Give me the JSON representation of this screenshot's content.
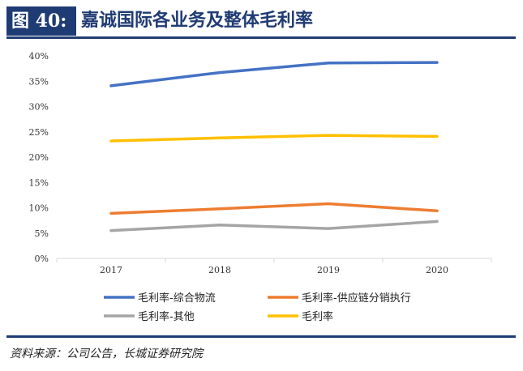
{
  "header": {
    "figure_number": "图 40:",
    "title": "嘉诚国际各业务及整体毛利率"
  },
  "source": "资料来源：公司公告，长城证券研究院",
  "colors": {
    "brand": "#1f3b73",
    "gridline": "#d9d9d9"
  },
  "chart_data": {
    "type": "line",
    "x": [
      "2017",
      "2018",
      "2019",
      "2020"
    ],
    "yticks": [
      "0%",
      "5%",
      "10%",
      "15%",
      "20%",
      "25%",
      "30%",
      "35%",
      "40%"
    ],
    "ylim": [
      0,
      40
    ],
    "y_unit": "%",
    "grid": false,
    "legend_position": "bottom",
    "series": [
      {
        "name": "毛利率-综合物流",
        "color": "#4472c4",
        "values": [
          34.1,
          36.7,
          38.6,
          38.7
        ]
      },
      {
        "name": "毛利率-供应链分销执行",
        "color": "#ed7d31",
        "values": [
          8.9,
          9.8,
          10.8,
          9.4
        ]
      },
      {
        "name": "毛利率-其他",
        "color": "#a5a5a5",
        "values": [
          5.5,
          6.6,
          5.9,
          7.3
        ]
      },
      {
        "name": "毛利率",
        "color": "#ffc000",
        "values": [
          23.2,
          23.8,
          24.3,
          24.1
        ]
      }
    ]
  }
}
